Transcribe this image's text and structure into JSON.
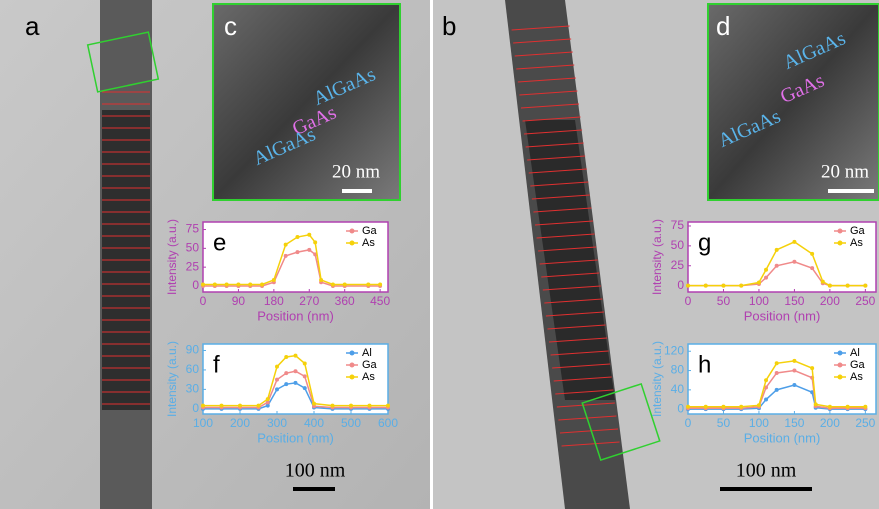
{
  "panels": {
    "a": "a",
    "b": "b"
  },
  "insets": [
    {
      "label": "c",
      "layers": [
        "AlGaAs",
        "GaAs",
        "AlGaAs"
      ],
      "scale_bar": "20 nm"
    },
    {
      "label": "d",
      "layers": [
        "AlGaAs",
        "GaAs",
        "AlGaAs"
      ],
      "scale_bar": "20 nm"
    }
  ],
  "scale_bars": [
    "100 nm",
    "100 nm"
  ],
  "chart_data": [
    {
      "type": "line",
      "label": "e",
      "x_label": "Position (nm)",
      "y_label": "Intensity (a.u.)",
      "axis_color": "#b040b0",
      "x": [
        0,
        30,
        60,
        90,
        120,
        150,
        180,
        210,
        240,
        270,
        285,
        300,
        330,
        360,
        420,
        450
      ],
      "series": [
        {
          "name": "Ga",
          "color": "#f08a8a",
          "values": [
            0,
            0,
            0,
            0,
            0,
            0,
            5,
            40,
            45,
            48,
            42,
            5,
            0,
            0,
            0,
            0
          ]
        },
        {
          "name": "As",
          "color": "#f5d10a",
          "values": [
            2,
            2,
            2,
            2,
            2,
            2,
            8,
            55,
            65,
            68,
            58,
            8,
            2,
            2,
            2,
            2
          ]
        }
      ],
      "xlim": [
        0,
        470
      ],
      "xticks": [
        0,
        90,
        180,
        270,
        360,
        450
      ],
      "ylim": [
        -8,
        85
      ],
      "yticks": [
        0,
        25,
        50,
        75
      ],
      "legend": "upper right"
    },
    {
      "type": "line",
      "label": "f",
      "x_label": "Position (nm)",
      "y_label": "Intensity (a.u.)",
      "axis_color": "#5aaee6",
      "x": [
        100,
        150,
        200,
        250,
        275,
        300,
        325,
        350,
        375,
        400,
        450,
        500,
        550,
        600
      ],
      "series": [
        {
          "name": "Al",
          "color": "#4d9ee8",
          "values": [
            0,
            0,
            0,
            0,
            5,
            30,
            38,
            40,
            32,
            2,
            0,
            0,
            0,
            0
          ]
        },
        {
          "name": "Ga",
          "color": "#f08a8a",
          "values": [
            2,
            2,
            2,
            2,
            10,
            45,
            55,
            58,
            50,
            4,
            2,
            2,
            2,
            2
          ]
        },
        {
          "name": "As",
          "color": "#f5d10a",
          "values": [
            5,
            5,
            5,
            5,
            15,
            65,
            80,
            82,
            70,
            8,
            5,
            5,
            5,
            5
          ]
        }
      ],
      "xlim": [
        100,
        600
      ],
      "xticks": [
        100,
        200,
        300,
        400,
        500,
        600
      ],
      "ylim": [
        -8,
        100
      ],
      "yticks": [
        0,
        30,
        60,
        90
      ],
      "legend": "upper right"
    },
    {
      "type": "line",
      "label": "g",
      "x_label": "Position (nm)",
      "y_label": "Intensity (a.u.)",
      "axis_color": "#b040b0",
      "x": [
        0,
        25,
        50,
        75,
        100,
        110,
        125,
        150,
        175,
        190,
        200,
        225,
        250
      ],
      "series": [
        {
          "name": "Ga",
          "color": "#f08a8a",
          "values": [
            0,
            0,
            0,
            0,
            2,
            10,
            25,
            30,
            22,
            3,
            0,
            0,
            0
          ]
        },
        {
          "name": "As",
          "color": "#f5d10a",
          "values": [
            0,
            0,
            0,
            0,
            4,
            20,
            45,
            55,
            40,
            5,
            0,
            0,
            0
          ]
        }
      ],
      "xlim": [
        0,
        265
      ],
      "xticks": [
        0,
        50,
        100,
        150,
        200,
        250
      ],
      "ylim": [
        -8,
        80
      ],
      "yticks": [
        0,
        25,
        50,
        75
      ],
      "legend": "upper right"
    },
    {
      "type": "line",
      "label": "h",
      "x_label": "Position (nm)",
      "y_label": "Intensity (a.u.)",
      "axis_color": "#5aaee6",
      "x": [
        0,
        25,
        50,
        75,
        100,
        110,
        125,
        150,
        175,
        180,
        200,
        225,
        250
      ],
      "series": [
        {
          "name": "Al",
          "color": "#4d9ee8",
          "values": [
            0,
            0,
            0,
            0,
            2,
            20,
            40,
            50,
            35,
            3,
            0,
            0,
            0
          ]
        },
        {
          "name": "Ga",
          "color": "#f08a8a",
          "values": [
            2,
            2,
            2,
            2,
            5,
            45,
            75,
            80,
            65,
            6,
            2,
            2,
            2
          ]
        },
        {
          "name": "As",
          "color": "#f5d10a",
          "values": [
            5,
            5,
            5,
            5,
            8,
            60,
            95,
            100,
            85,
            10,
            5,
            5,
            5
          ]
        }
      ],
      "xlim": [
        0,
        265
      ],
      "xticks": [
        0,
        50,
        100,
        150,
        200,
        250
      ],
      "ylim": [
        -10,
        135
      ],
      "yticks": [
        0,
        40,
        80,
        120
      ],
      "legend": "upper right"
    }
  ]
}
